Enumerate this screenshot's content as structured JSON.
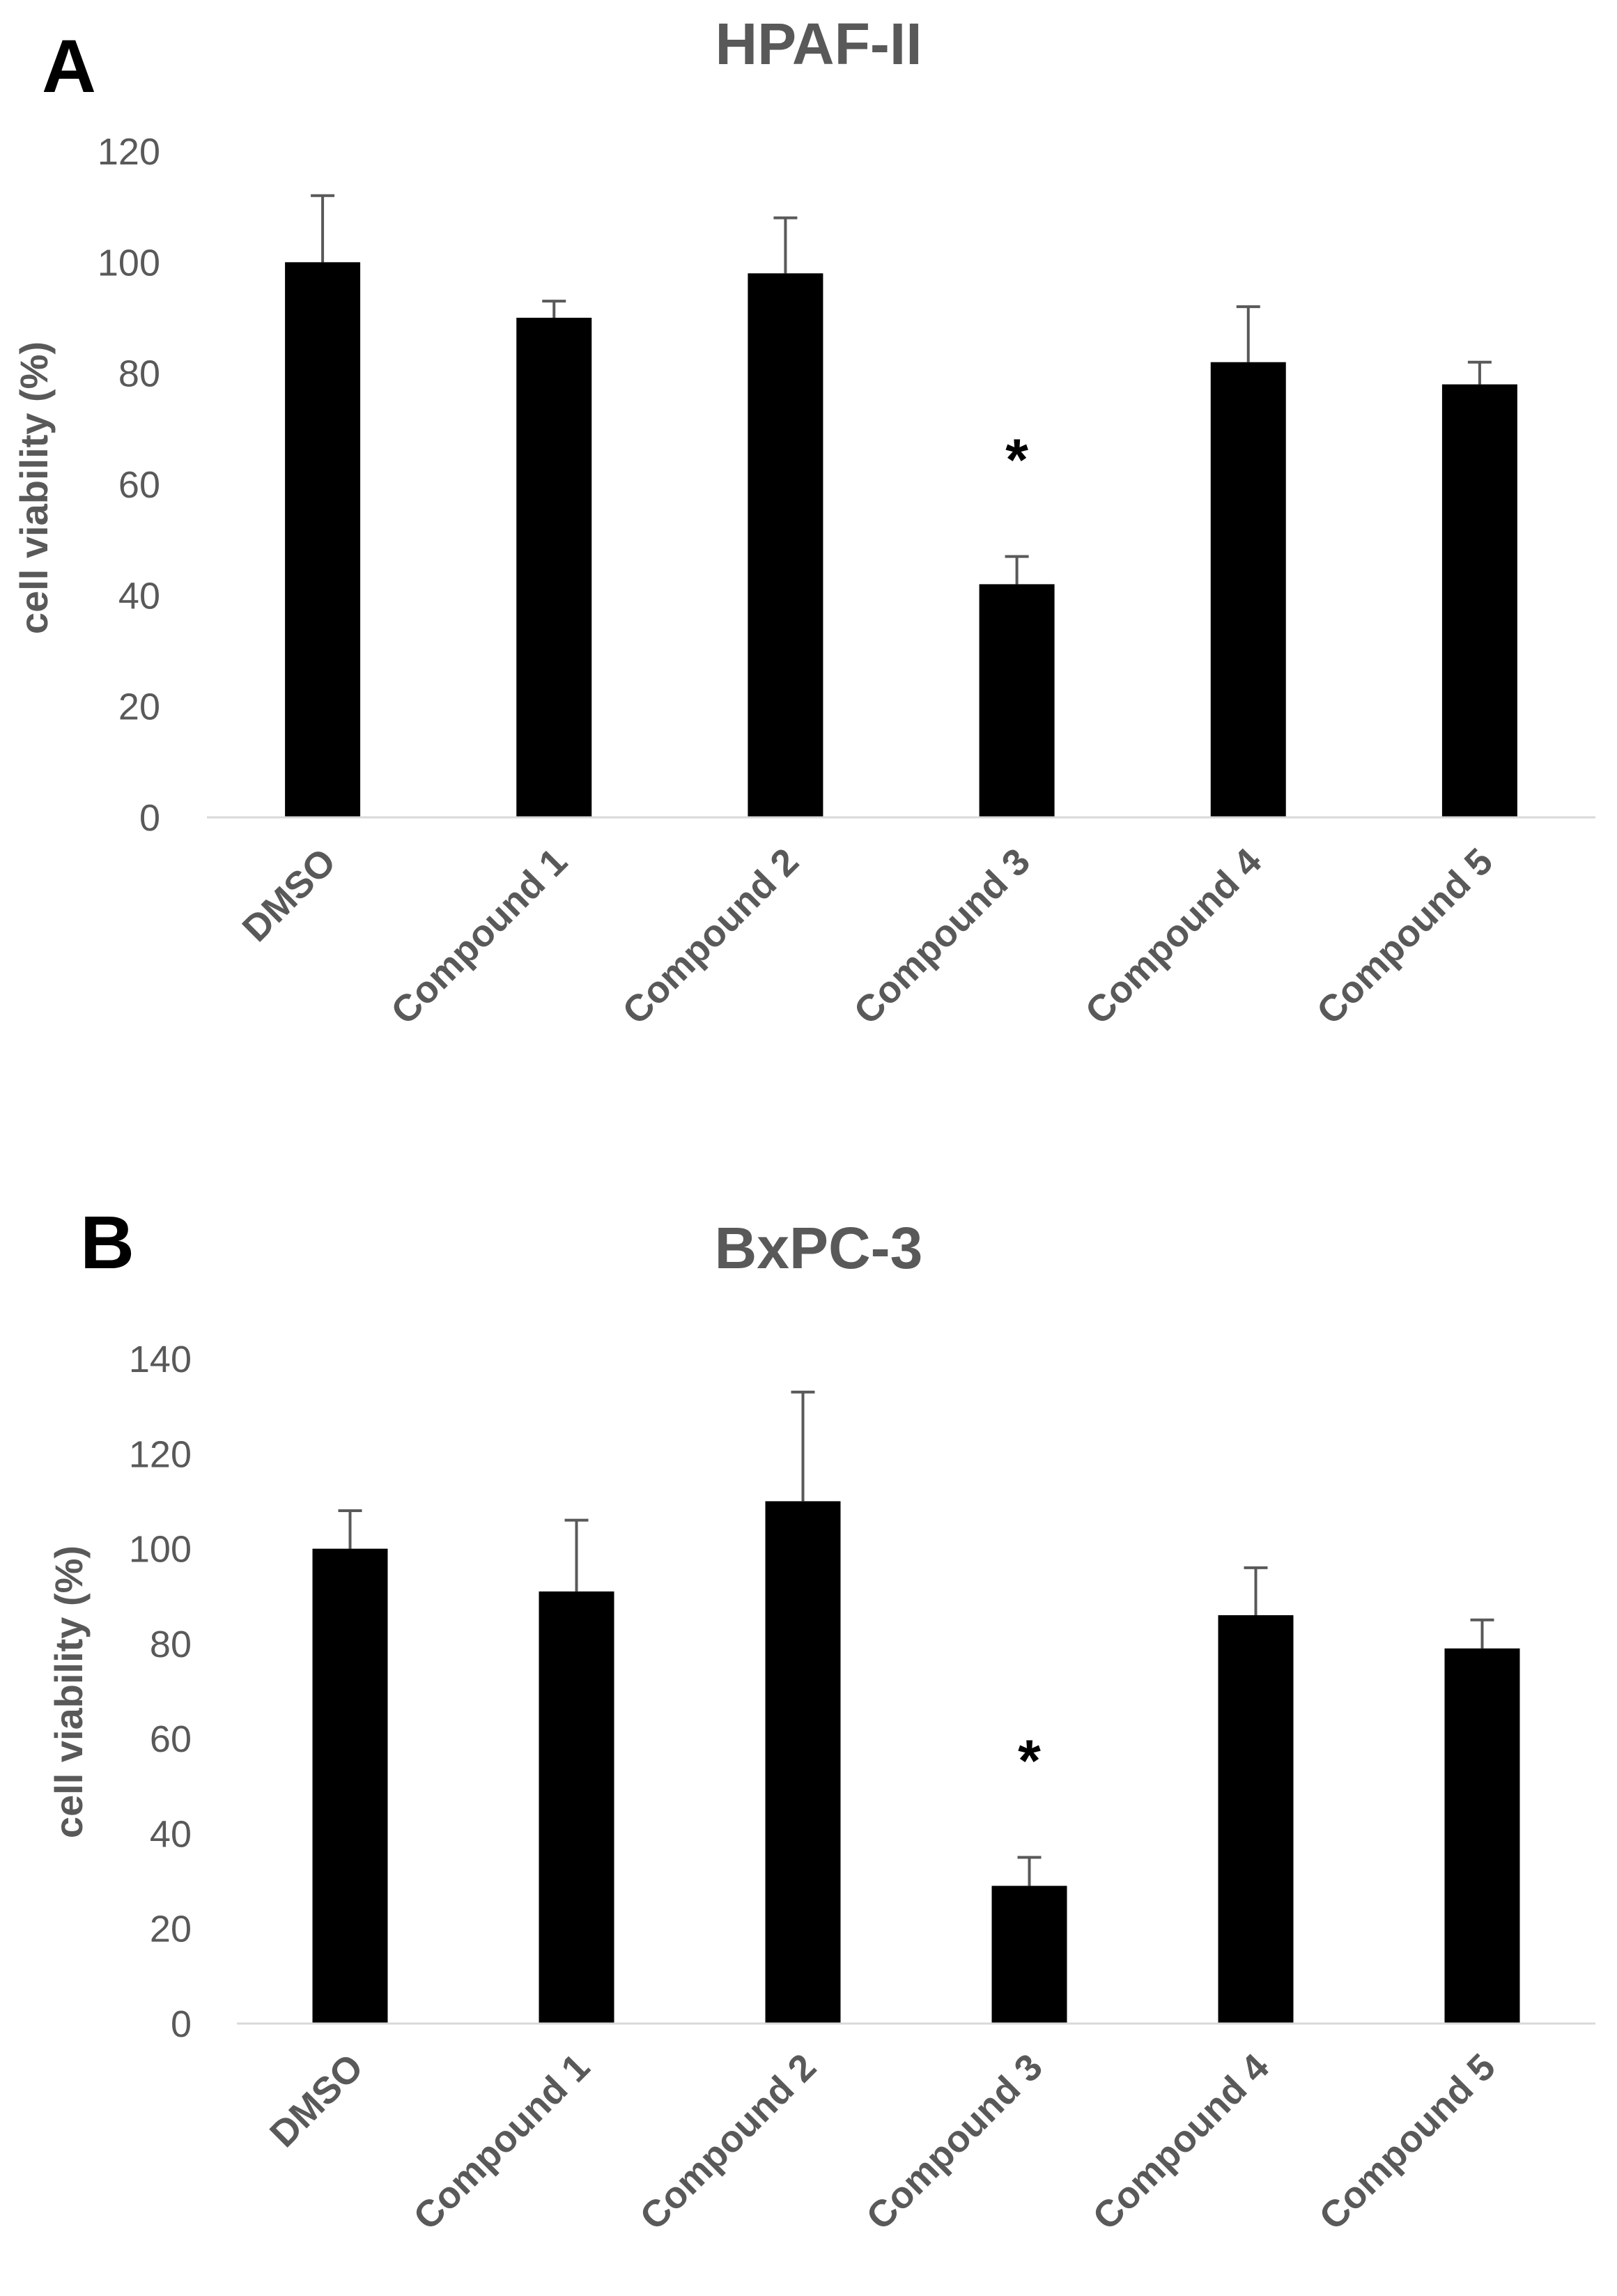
{
  "chart_data": [
    {
      "panel": "A",
      "type": "bar",
      "title": "HPAF-II",
      "xlabel": "",
      "ylabel": "cell viability (%)",
      "ylim": [
        0,
        120
      ],
      "yticks": [
        0,
        20,
        40,
        60,
        80,
        100,
        120
      ],
      "categories": [
        "DMSO",
        "Compound 1",
        "Compound 2",
        "Compound 3",
        "Compound 4",
        "Compound 5"
      ],
      "values": [
        100,
        90,
        98,
        42,
        82,
        78
      ],
      "error_upper": [
        12,
        3,
        10,
        5,
        10,
        4
      ],
      "significance": [
        "",
        "",
        "",
        "*",
        "",
        ""
      ],
      "bar_color": "#000000",
      "grid": false,
      "legend": "none"
    },
    {
      "panel": "B",
      "type": "bar",
      "title": "BxPC-3",
      "xlabel": "",
      "ylabel": "cell viability (%)",
      "ylim": [
        0,
        140
      ],
      "yticks": [
        0,
        20,
        40,
        60,
        80,
        100,
        120,
        140
      ],
      "categories": [
        "DMSO",
        "Compound 1",
        "Compound 2",
        "Compound 3",
        "Compound 4",
        "Compound 5"
      ],
      "values": [
        100,
        91,
        110,
        29,
        86,
        79
      ],
      "error_upper": [
        8,
        15,
        23,
        6,
        10,
        6
      ],
      "significance": [
        "",
        "",
        "",
        "*",
        "",
        ""
      ],
      "bar_color": "#000000",
      "grid": false,
      "legend": "none"
    }
  ]
}
